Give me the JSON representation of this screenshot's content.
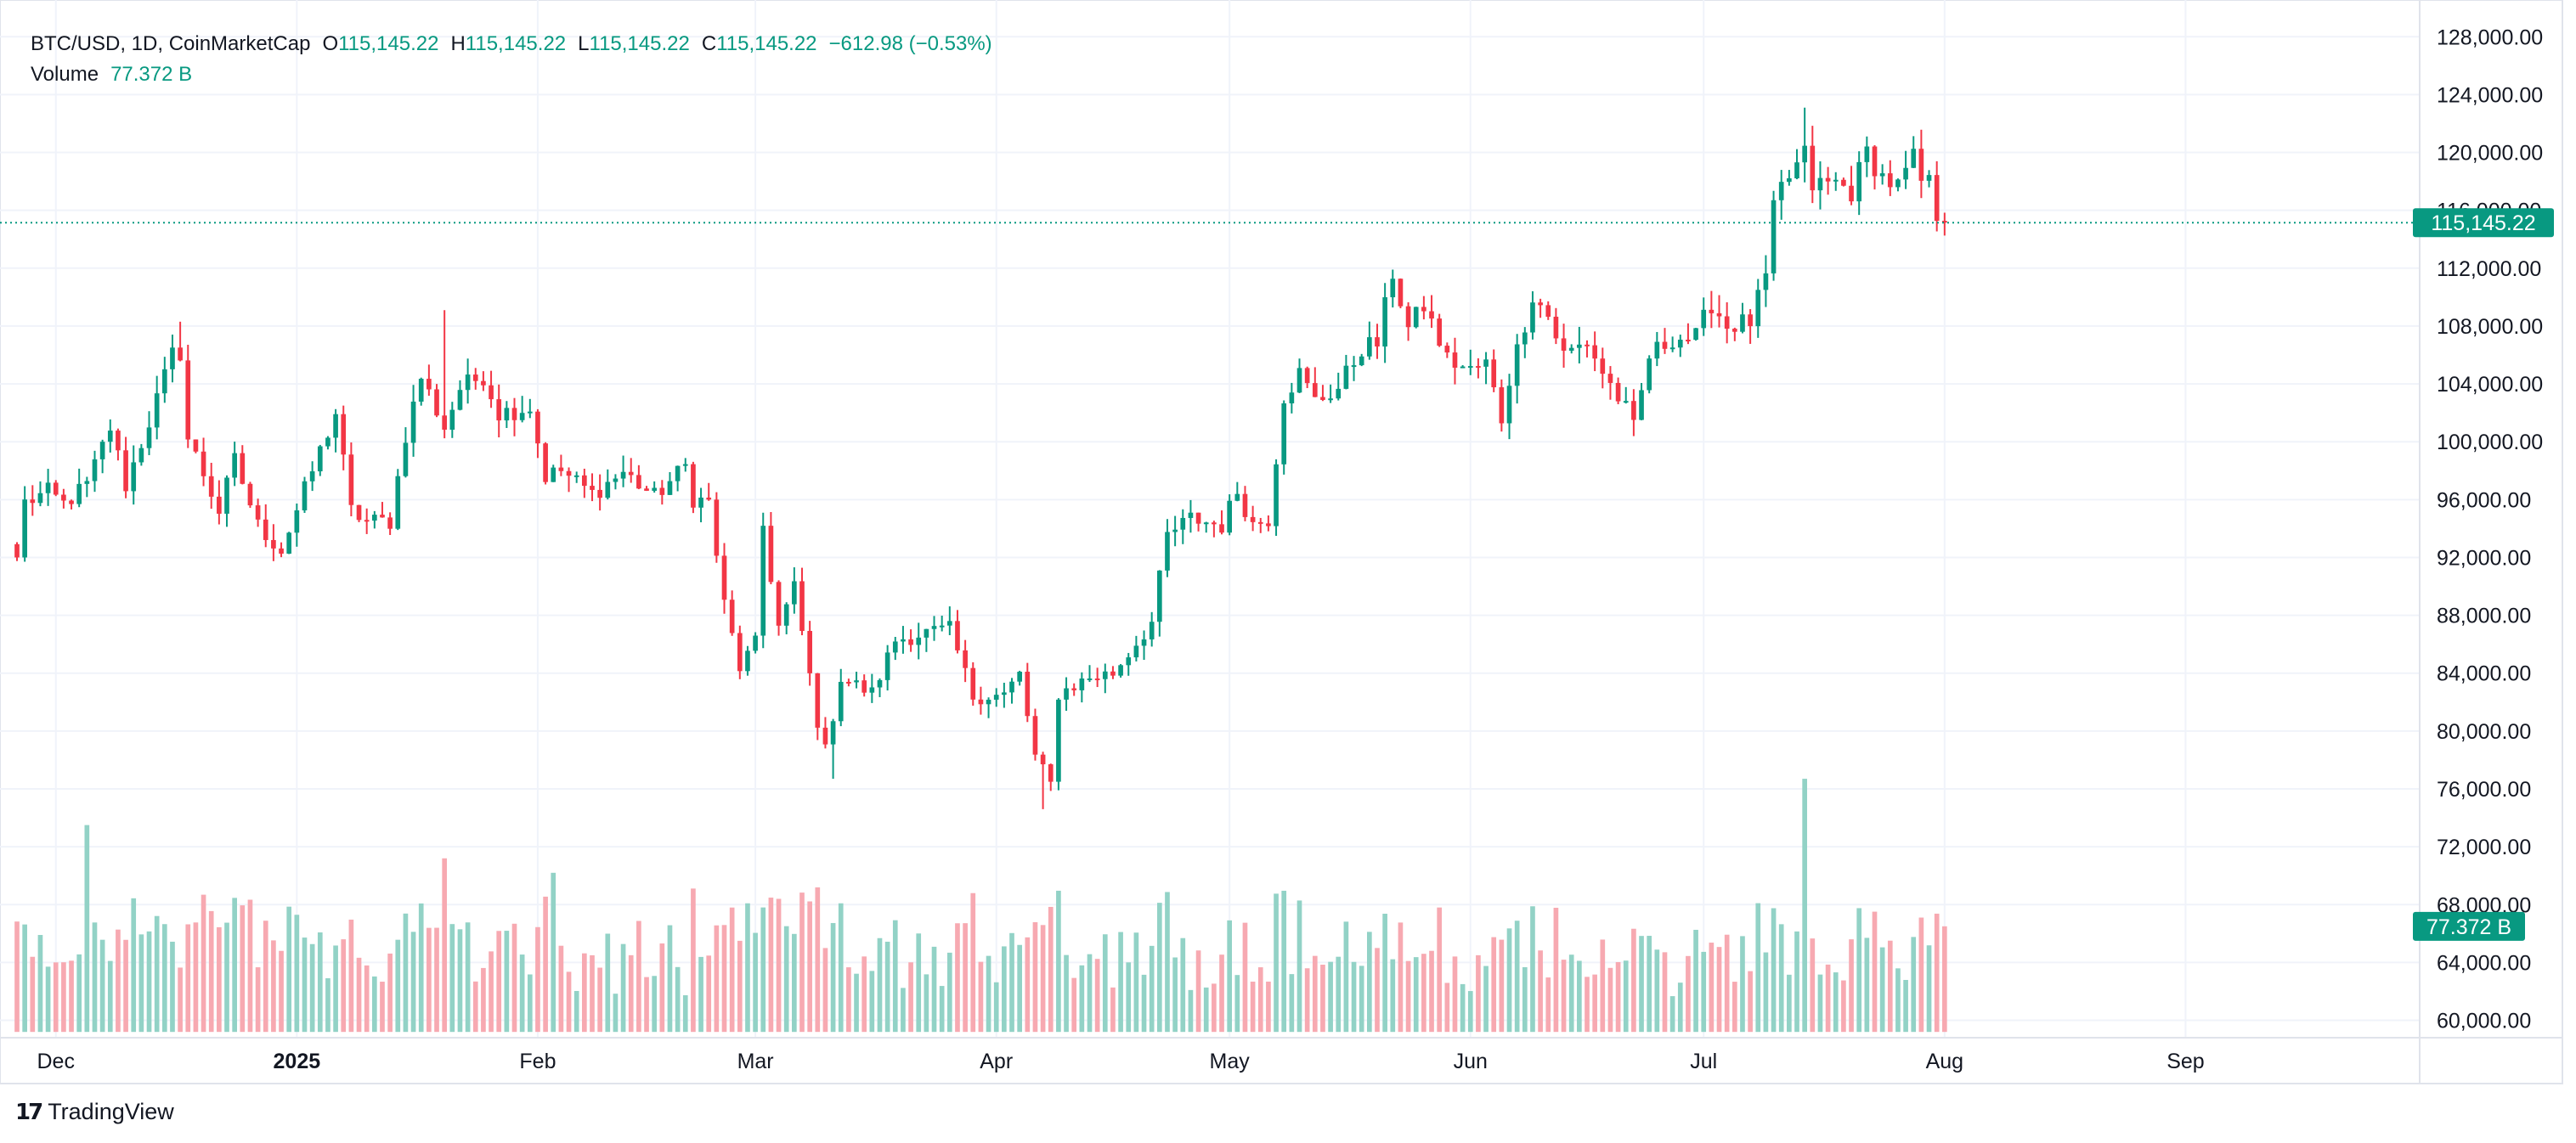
{
  "header": {
    "symbol_line": "BTC/USD, 1D, CoinMarketCap",
    "open_label": "O",
    "open_value": "115,145.22",
    "high_label": "H",
    "high_value": "115,145.22",
    "low_label": "L",
    "low_value": "115,145.22",
    "close_label": "C",
    "close_value": "115,145.22",
    "change": "−612.98 (−0.53%)",
    "volume_label": "Volume",
    "volume_value": "77.372 B"
  },
  "last_price_tag": "115,145.22",
  "volume_tag": "77.372 B",
  "footer": {
    "logo_icon": "tradingview-logo-icon",
    "brand": "TradingView"
  },
  "colors": {
    "up": "#089981",
    "down": "#f23645",
    "up_vol": "#92d2c6",
    "down_vol": "#f7a9b1",
    "grid": "#f0f3fa"
  },
  "chart_data": {
    "type": "candlestick",
    "title": "",
    "x_tick_labels": [
      {
        "date": "2024-12-01",
        "label": "Dec"
      },
      {
        "date": "2025-01-01",
        "label": "2025",
        "bold": true
      },
      {
        "date": "2025-02-01",
        "label": "Feb"
      },
      {
        "date": "2025-03-01",
        "label": "Mar"
      },
      {
        "date": "2025-04-01",
        "label": "Apr"
      },
      {
        "date": "2025-05-01",
        "label": "May"
      },
      {
        "date": "2025-06-01",
        "label": "Jun"
      },
      {
        "date": "2025-07-01",
        "label": "Jul"
      },
      {
        "date": "2025-08-01",
        "label": "Aug"
      },
      {
        "date": "2025-09-01",
        "label": "Sep"
      }
    ],
    "x_range": [
      "2024-11-26",
      "2025-09-25"
    ],
    "price_axis_ticks": [
      60000,
      64000,
      68000,
      72000,
      76000,
      80000,
      84000,
      88000,
      92000,
      96000,
      100000,
      104000,
      108000,
      112000,
      116000,
      120000,
      124000,
      128000
    ],
    "price_tick_labels": [
      "60,000.00",
      "64,000.00",
      "68,000.00",
      "72,000.00",
      "76,000.00",
      "80,000.00",
      "84,000.00",
      "88,000.00",
      "92,000.00",
      "96,000.00",
      "100,000.00",
      "104,000.00",
      "108,000.00",
      "112,000.00",
      "116,000.00",
      "120,000.00",
      "124,000.00",
      "128,000.00"
    ],
    "price_range": [
      58800,
      129600
    ],
    "volume_baseline_price": 59200,
    "volume_max_price": 76700,
    "last_price": 115145.22,
    "close_anchors": [
      [
        "2024-11-26",
        92000
      ],
      [
        "2024-11-27",
        95800
      ],
      [
        "2024-11-30",
        96500
      ],
      [
        "2024-12-02",
        95700
      ],
      [
        "2024-12-05",
        97000
      ],
      [
        "2024-12-08",
        101000
      ],
      [
        "2024-12-10",
        97000
      ],
      [
        "2024-12-13",
        101400
      ],
      [
        "2024-12-16",
        106000
      ],
      [
        "2024-12-17",
        106200
      ],
      [
        "2024-12-18",
        100200
      ],
      [
        "2024-12-20",
        97800
      ],
      [
        "2024-12-22",
        95200
      ],
      [
        "2024-12-24",
        98700
      ],
      [
        "2024-12-27",
        94200
      ],
      [
        "2024-12-30",
        92500
      ],
      [
        "2025-01-03",
        98000
      ],
      [
        "2025-01-06",
        102000
      ],
      [
        "2025-01-08",
        95200
      ],
      [
        "2025-01-10",
        94500
      ],
      [
        "2025-01-13",
        94500
      ],
      [
        "2025-01-15",
        100500
      ],
      [
        "2025-01-17",
        104500
      ],
      [
        "2025-01-20",
        101000
      ],
      [
        "2025-01-22",
        103700
      ],
      [
        "2025-01-25",
        104600
      ],
      [
        "2025-01-27",
        102000
      ],
      [
        "2025-01-31",
        102400
      ],
      [
        "2025-02-02",
        97600
      ],
      [
        "2025-02-04",
        98000
      ],
      [
        "2025-02-08",
        96400
      ],
      [
        "2025-02-12",
        97900
      ],
      [
        "2025-02-16",
        96200
      ],
      [
        "2025-02-20",
        98300
      ],
      [
        "2025-02-21",
        96100
      ],
      [
        "2025-02-23",
        95800
      ],
      [
        "2025-02-25",
        88700
      ],
      [
        "2025-02-27",
        84400
      ],
      [
        "2025-03-01",
        86000
      ],
      [
        "2025-03-02",
        94200
      ],
      [
        "2025-03-04",
        87200
      ],
      [
        "2025-03-06",
        89900
      ],
      [
        "2025-03-09",
        80700
      ],
      [
        "2025-03-10",
        78600
      ],
      [
        "2025-03-12",
        83700
      ],
      [
        "2025-03-16",
        82600
      ],
      [
        "2025-03-19",
        86300
      ],
      [
        "2025-03-23",
        86800
      ],
      [
        "2025-03-26",
        87000
      ],
      [
        "2025-03-29",
        82400
      ],
      [
        "2025-04-02",
        82500
      ],
      [
        "2025-04-04",
        83900
      ],
      [
        "2025-04-06",
        78200
      ],
      [
        "2025-04-08",
        76300
      ],
      [
        "2025-04-09",
        82600
      ],
      [
        "2025-04-13",
        83700
      ],
      [
        "2025-04-16",
        84000
      ],
      [
        "2025-04-21",
        87500
      ],
      [
        "2025-04-23",
        93500
      ],
      [
        "2025-04-26",
        94700
      ],
      [
        "2025-04-30",
        94200
      ],
      [
        "2025-05-02",
        96600
      ],
      [
        "2025-05-04",
        94300
      ],
      [
        "2025-05-06",
        94700
      ],
      [
        "2025-05-08",
        103200
      ],
      [
        "2025-05-10",
        104700
      ],
      [
        "2025-05-12",
        102800
      ],
      [
        "2025-05-15",
        103700
      ],
      [
        "2025-05-18",
        106500
      ],
      [
        "2025-05-20",
        106800
      ],
      [
        "2025-05-22",
        111700
      ],
      [
        "2025-05-24",
        107800
      ],
      [
        "2025-05-26",
        109400
      ],
      [
        "2025-05-29",
        105700
      ],
      [
        "2025-06-01",
        104900
      ],
      [
        "2025-06-03",
        105400
      ],
      [
        "2025-06-05",
        101600
      ],
      [
        "2025-06-06",
        104400
      ],
      [
        "2025-06-09",
        110200
      ],
      [
        "2025-06-11",
        108700
      ],
      [
        "2025-06-13",
        106000
      ],
      [
        "2025-06-16",
        106900
      ],
      [
        "2025-06-18",
        104800
      ],
      [
        "2025-06-21",
        102200
      ],
      [
        "2025-06-22",
        100900
      ],
      [
        "2025-06-24",
        105900
      ],
      [
        "2025-06-27",
        107200
      ],
      [
        "2025-06-30",
        107200
      ],
      [
        "2025-07-02",
        109600
      ],
      [
        "2025-07-04",
        108000
      ],
      [
        "2025-07-07",
        108300
      ],
      [
        "2025-07-09",
        111300
      ],
      [
        "2025-07-10",
        115900
      ],
      [
        "2025-07-11",
        117500
      ],
      [
        "2025-07-14",
        119800
      ],
      [
        "2025-07-15",
        117700
      ],
      [
        "2025-07-18",
        117900
      ],
      [
        "2025-07-20",
        117300
      ],
      [
        "2025-07-22",
        120000
      ],
      [
        "2025-07-24",
        118300
      ],
      [
        "2025-07-26",
        117600
      ],
      [
        "2025-07-28",
        119500
      ],
      [
        "2025-07-29",
        118000
      ],
      [
        "2025-07-30",
        117800
      ],
      [
        "2025-07-31",
        115758
      ],
      [
        "2025-08-01",
        115145.22
      ]
    ],
    "highlights": [
      {
        "date": "2025-07-14",
        "high": 123100
      },
      {
        "date": "2025-04-07",
        "low": 74600
      },
      {
        "date": "2025-03-11",
        "low": 76700
      },
      {
        "date": "2025-01-20",
        "high": 109100
      },
      {
        "date": "2024-12-17",
        "high": 108300
      },
      {
        "date": "2025-05-22",
        "high": 111900
      }
    ],
    "volume_spikes": [
      {
        "date": "2024-12-05",
        "price": 73500
      },
      {
        "date": "2025-01-20",
        "price": 71200
      },
      {
        "date": "2025-02-03",
        "price": 70200
      },
      {
        "date": "2025-07-14",
        "price": 76700
      }
    ],
    "volume_last_price": 66500
  }
}
